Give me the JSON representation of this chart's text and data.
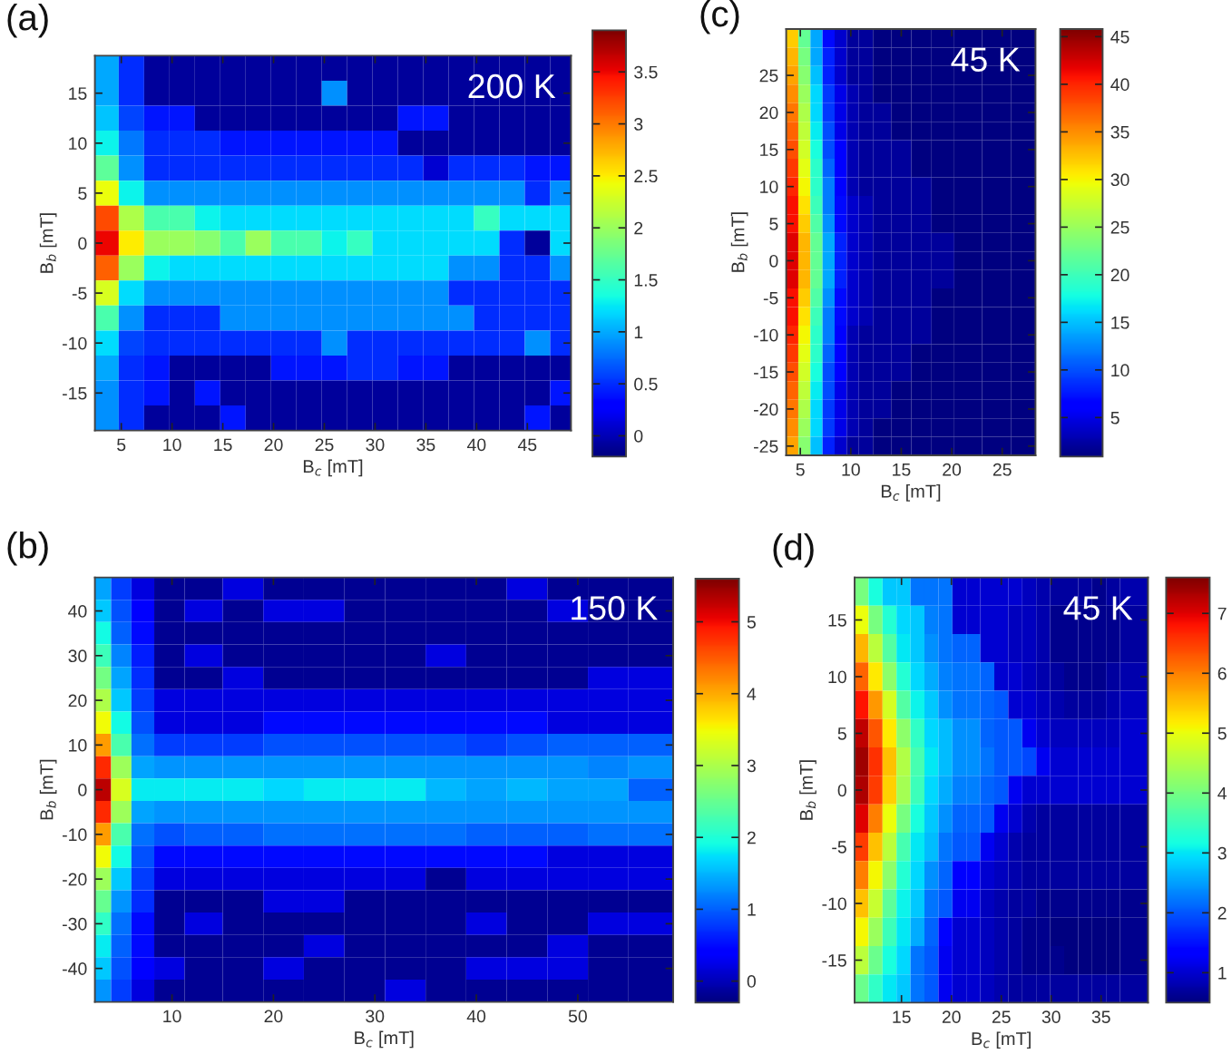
{
  "chart_data": [
    {
      "type": "heatmap",
      "title": "(a)",
      "xlabel": "B$_{c}$ [mT]",
      "ylabel": "B$_{b}$ [mT]",
      "annotations": [
        "200 K"
      ],
      "x": [
        3.5,
        6,
        8.5,
        11,
        13.5,
        16,
        18.5,
        21,
        23.5,
        26,
        28.5,
        31,
        33.5,
        36,
        38.5,
        41,
        43.5,
        46,
        48.5
      ],
      "y_categories": [
        null,
        "15",
        null,
        "10",
        null,
        "5",
        null,
        "0",
        null,
        "-5",
        null,
        "-10",
        null,
        "-15",
        null
      ],
      "cells": [
        [
          1.0,
          0.5,
          -0.1,
          -0.1,
          -0.1,
          -0.1,
          -0.1,
          -0.1,
          -0.1,
          -0.1,
          -0.1,
          -0.1,
          -0.1,
          -0.1,
          -0.1,
          -0.1,
          -0.1,
          -0.1,
          -0.1
        ],
        [
          1.0,
          0.5,
          -0.1,
          -0.1,
          -0.1,
          -0.1,
          -0.1,
          -0.1,
          -0.1,
          0.9,
          -0.1,
          -0.1,
          -0.1,
          -0.1,
          -0.1,
          -0.1,
          -0.1,
          -0.1,
          -0.1
        ],
        [
          1.1,
          0.6,
          0.4,
          0.4,
          -0.1,
          -0.1,
          -0.1,
          -0.1,
          -0.1,
          -0.1,
          -0.1,
          -0.1,
          0.4,
          0.4,
          -0.1,
          -0.1,
          -0.1,
          -0.1,
          -0.1
        ],
        [
          1.3,
          0.8,
          0.5,
          0.5,
          0.5,
          0.4,
          0.4,
          0.4,
          0.4,
          0.4,
          0.4,
          0.4,
          -0.1,
          -0.1,
          -0.1,
          -0.1,
          -0.1,
          -0.1,
          -0.1
        ],
        [
          1.7,
          0.9,
          0.5,
          0.5,
          0.5,
          0.5,
          0.5,
          0.5,
          0.5,
          0.5,
          0.5,
          0.5,
          0.5,
          0.1,
          0.5,
          0.5,
          0.5,
          0.4,
          0.4
        ],
        [
          2.4,
          1.3,
          0.9,
          0.9,
          0.9,
          0.9,
          0.9,
          0.9,
          0.9,
          0.9,
          0.9,
          0.9,
          0.9,
          0.9,
          0.9,
          0.9,
          0.9,
          0.5,
          0.9
        ],
        [
          3.2,
          2.1,
          1.6,
          1.6,
          1.3,
          1.2,
          1.2,
          1.2,
          1.2,
          1.2,
          1.2,
          1.2,
          1.2,
          1.2,
          1.2,
          1.5,
          1.2,
          1.2,
          1.2
        ],
        [
          3.5,
          2.5,
          2.0,
          2.0,
          1.9,
          1.6,
          2.0,
          1.6,
          1.6,
          1.3,
          1.5,
          1.2,
          1.2,
          1.2,
          1.2,
          1.2,
          0.5,
          -0.1,
          1.2
        ],
        [
          3.1,
          2.0,
          1.3,
          1.2,
          1.2,
          1.2,
          1.2,
          1.2,
          1.2,
          1.2,
          1.2,
          1.2,
          1.2,
          1.2,
          0.9,
          0.9,
          0.5,
          0.5,
          0.9
        ],
        [
          2.3,
          1.2,
          0.9,
          0.9,
          0.9,
          0.9,
          0.9,
          0.9,
          0.9,
          0.9,
          0.9,
          0.9,
          0.9,
          0.9,
          0.5,
          0.5,
          0.5,
          0.5,
          0.5
        ],
        [
          1.6,
          0.9,
          0.5,
          0.5,
          0.5,
          0.9,
          0.9,
          0.9,
          0.9,
          0.9,
          0.9,
          0.9,
          0.9,
          0.9,
          0.9,
          0.5,
          0.5,
          0.5,
          0.5
        ],
        [
          1.2,
          0.6,
          0.5,
          0.5,
          0.5,
          0.5,
          0.5,
          0.5,
          0.5,
          0.9,
          0.5,
          0.5,
          0.5,
          0.5,
          0.5,
          0.5,
          0.5,
          0.9,
          0.5
        ],
        [
          1.0,
          0.5,
          0.4,
          -0.1,
          -0.1,
          -0.1,
          -0.1,
          0.4,
          0.4,
          0.4,
          0.5,
          0.5,
          0.4,
          0.4,
          -0.1,
          -0.1,
          -0.1,
          -0.1,
          -0.1
        ],
        [
          0.9,
          0.5,
          0.4,
          -0.1,
          0.4,
          -0.1,
          -0.1,
          -0.1,
          -0.1,
          -0.1,
          -0.1,
          -0.1,
          -0.1,
          -0.1,
          -0.1,
          -0.1,
          -0.1,
          -0.1,
          0.4
        ],
        [
          0.9,
          0.5,
          -0.1,
          -0.1,
          -0.1,
          0.4,
          -0.1,
          -0.1,
          -0.1,
          -0.1,
          -0.1,
          -0.1,
          -0.1,
          -0.1,
          -0.1,
          -0.1,
          -0.1,
          0.4,
          -0.1
        ]
      ],
      "xlim": [
        2.4,
        49.3
      ],
      "xticks": [
        5,
        10,
        15,
        20,
        25,
        30,
        35,
        40,
        45
      ],
      "clim": [
        -0.2,
        3.9
      ],
      "cticks": [
        0,
        0.5,
        1,
        1.5,
        2,
        2.5,
        3,
        3.5
      ]
    },
    {
      "type": "heatmap",
      "title": "(c)",
      "xlabel": "B$_{c}$ [mT]",
      "ylabel": "B$_{b}$ [mT]",
      "annotations": [
        "45 K"
      ],
      "x": [
        4.2,
        5.4,
        6.6,
        7.8,
        9,
        10.2,
        11.4,
        13,
        15,
        17,
        19,
        21.5,
        24.5,
        27.3
      ],
      "y_categories": [
        null,
        null,
        "25",
        null,
        "20",
        null,
        "15",
        null,
        "10",
        null,
        "5",
        null,
        "0",
        null,
        "-5",
        null,
        "-10",
        null,
        "-15",
        null,
        "-20",
        null,
        "-25"
      ],
      "cells": [
        [
          32,
          22,
          14,
          7,
          4,
          2,
          2,
          1,
          1,
          1,
          1,
          1,
          1,
          1
        ],
        [
          33,
          23,
          14,
          8,
          4,
          2,
          2,
          1,
          1,
          1,
          1,
          1,
          1,
          1
        ],
        [
          34,
          24,
          15,
          8,
          4,
          2,
          2,
          1,
          1,
          1,
          1,
          1,
          1,
          1
        ],
        [
          35,
          25,
          16,
          9,
          5,
          3,
          2,
          1,
          1,
          1,
          1,
          1,
          1,
          1
        ],
        [
          36,
          26,
          16,
          9,
          5,
          3,
          2,
          2,
          1,
          1,
          1,
          1,
          1,
          1
        ],
        [
          37,
          27,
          17,
          10,
          5,
          3,
          2,
          2,
          1,
          1,
          1,
          1,
          1,
          1
        ],
        [
          38,
          28,
          18,
          10,
          6,
          3,
          2,
          2,
          2,
          1,
          1,
          1,
          1,
          1
        ],
        [
          39,
          29,
          19,
          11,
          6,
          3,
          2,
          2,
          2,
          1,
          1,
          1,
          1,
          1
        ],
        [
          40,
          30,
          19,
          12,
          6,
          3,
          2,
          2,
          2,
          2,
          1,
          1,
          1,
          1
        ],
        [
          41,
          31,
          20,
          12,
          7,
          4,
          3,
          2,
          2,
          2,
          1,
          1,
          1,
          1
        ],
        [
          41,
          32,
          21,
          13,
          7,
          4,
          3,
          2,
          2,
          2,
          1,
          1,
          1,
          1
        ],
        [
          42,
          33,
          22,
          14,
          8,
          4,
          3,
          2,
          2,
          2,
          2,
          1,
          1,
          1
        ],
        [
          42,
          33,
          22,
          14,
          8,
          4,
          3,
          2,
          2,
          2,
          2,
          1,
          1,
          1
        ],
        [
          42,
          33,
          22,
          14,
          8,
          4,
          3,
          2,
          2,
          2,
          2,
          1,
          1,
          1
        ],
        [
          41,
          32,
          21,
          13,
          7,
          4,
          3,
          2,
          2,
          2,
          1,
          1,
          1,
          1
        ],
        [
          41,
          31,
          20,
          12,
          7,
          4,
          3,
          2,
          2,
          2,
          1,
          1,
          1,
          1
        ],
        [
          40,
          30,
          19,
          12,
          6,
          3,
          2,
          2,
          2,
          2,
          1,
          1,
          1,
          1
        ],
        [
          39,
          29,
          19,
          11,
          6,
          3,
          2,
          2,
          2,
          1,
          1,
          1,
          1,
          1
        ],
        [
          38,
          28,
          18,
          10,
          6,
          3,
          2,
          2,
          2,
          1,
          1,
          1,
          1,
          1
        ],
        [
          37,
          27,
          17,
          10,
          5,
          3,
          2,
          2,
          1,
          1,
          1,
          1,
          1,
          1
        ],
        [
          36,
          26,
          16,
          9,
          5,
          3,
          2,
          2,
          1,
          1,
          1,
          1,
          1,
          1
        ],
        [
          35,
          25,
          16,
          9,
          5,
          3,
          2,
          1,
          1,
          1,
          1,
          1,
          1,
          1
        ],
        [
          34,
          24,
          15,
          8,
          4,
          2,
          2,
          1,
          1,
          1,
          1,
          1,
          1,
          1
        ]
      ],
      "xlim": [
        3.6,
        28.3
      ],
      "xticks": [
        5,
        10,
        15,
        20,
        25
      ],
      "clim": [
        0.9,
        45.8
      ],
      "cticks": [
        5,
        10,
        15,
        20,
        25,
        30,
        35,
        40,
        45
      ]
    },
    {
      "type": "heatmap",
      "title": "(b)",
      "xlabel": "B$_{c}$ [mT]",
      "ylabel": "B$_{b}$ [mT]",
      "annotations": [
        "150 K"
      ],
      "x": [
        3,
        5,
        7,
        9.5,
        13,
        17,
        21,
        25,
        29,
        33,
        37,
        41,
        45,
        49,
        53,
        57
      ],
      "y_categories": [
        null,
        "40",
        null,
        "30",
        null,
        "20",
        null,
        "10",
        null,
        "0",
        null,
        "-10",
        null,
        "-20",
        null,
        "-30",
        null,
        "-40",
        null
      ],
      "cells": [
        [
          1.4,
          0.8,
          0.2,
          -0.2,
          -0.2,
          0.2,
          -0.2,
          -0.2,
          -0.2,
          -0.2,
          -0.2,
          -0.2,
          0.2,
          -0.2,
          -0.2,
          -0.2
        ],
        [
          1.6,
          0.9,
          0.4,
          -0.2,
          0.2,
          -0.2,
          0.2,
          0.2,
          -0.2,
          -0.2,
          -0.2,
          -0.2,
          -0.2,
          0.2,
          -0.2,
          -0.2
        ],
        [
          1.9,
          1.0,
          0.5,
          -0.2,
          -0.2,
          -0.2,
          -0.2,
          -0.2,
          -0.2,
          -0.2,
          -0.2,
          -0.2,
          -0.2,
          -0.2,
          -0.2,
          -0.2
        ],
        [
          2.2,
          1.2,
          0.6,
          -0.2,
          0.2,
          -0.2,
          -0.2,
          -0.2,
          -0.2,
          -0.2,
          0.2,
          -0.2,
          -0.2,
          -0.2,
          -0.2,
          -0.2
        ],
        [
          2.6,
          1.4,
          0.7,
          -0.2,
          -0.2,
          0.2,
          -0.2,
          -0.2,
          -0.2,
          -0.2,
          -0.2,
          -0.2,
          -0.2,
          -0.2,
          0.2,
          0.2
        ],
        [
          3.0,
          1.6,
          0.8,
          0.2,
          0.2,
          0.2,
          0.2,
          0.2,
          0.2,
          0.2,
          0.2,
          0.2,
          0.2,
          0.2,
          0.2,
          0.2
        ],
        [
          3.5,
          1.9,
          0.9,
          0.2,
          0.2,
          0.2,
          0.5,
          0.5,
          0.5,
          0.5,
          0.5,
          0.5,
          0.5,
          0.2,
          0.2,
          0.2
        ],
        [
          4.1,
          2.3,
          1.1,
          0.8,
          0.8,
          0.8,
          0.9,
          0.9,
          0.9,
          0.9,
          0.9,
          0.8,
          0.9,
          1.0,
          1.0,
          1.0
        ],
        [
          4.8,
          2.9,
          1.4,
          1.3,
          1.3,
          1.3,
          1.3,
          1.3,
          1.3,
          1.3,
          1.3,
          1.3,
          1.3,
          1.3,
          1.2,
          1.3
        ],
        [
          5.3,
          3.3,
          1.8,
          1.8,
          1.8,
          1.8,
          1.7,
          1.8,
          1.8,
          1.8,
          1.5,
          1.4,
          1.5,
          1.4,
          1.4,
          1.0
        ],
        [
          4.8,
          2.9,
          1.4,
          1.3,
          1.3,
          1.3,
          1.3,
          1.3,
          1.3,
          1.3,
          1.3,
          1.3,
          1.3,
          1.3,
          1.3,
          1.3
        ],
        [
          4.1,
          2.3,
          1.1,
          0.9,
          1.0,
          1.0,
          1.1,
          1.1,
          1.1,
          1.1,
          1.1,
          1.0,
          1.0,
          1.0,
          1.1,
          1.1
        ],
        [
          3.5,
          1.9,
          0.9,
          0.5,
          0.5,
          0.5,
          0.5,
          0.5,
          0.5,
          0.5,
          0.5,
          0.5,
          0.5,
          0.2,
          0.2,
          0.2
        ],
        [
          2.9,
          1.6,
          0.8,
          0.2,
          0.2,
          0.2,
          0.2,
          0.2,
          0.2,
          0.2,
          -0.2,
          0.2,
          0.2,
          0.2,
          0.2,
          0.2
        ],
        [
          2.5,
          1.3,
          0.7,
          -0.2,
          -0.2,
          -0.2,
          0.2,
          0.2,
          -0.2,
          -0.2,
          -0.2,
          -0.2,
          -0.2,
          -0.2,
          -0.2,
          -0.2
        ],
        [
          2.1,
          1.1,
          0.5,
          -0.2,
          0.2,
          -0.2,
          -0.2,
          -0.2,
          -0.2,
          -0.2,
          -0.2,
          0.2,
          -0.2,
          -0.2,
          0.2,
          0.2
        ],
        [
          1.8,
          1.0,
          0.5,
          -0.2,
          -0.2,
          -0.2,
          -0.2,
          0.2,
          -0.2,
          -0.2,
          -0.2,
          -0.2,
          -0.2,
          0.2,
          -0.2,
          -0.2
        ],
        [
          1.6,
          0.9,
          0.4,
          0.2,
          -0.2,
          -0.2,
          0.2,
          -0.2,
          -0.2,
          -0.2,
          -0.2,
          0.2,
          0.2,
          0.2,
          -0.2,
          -0.2
        ],
        [
          1.3,
          0.8,
          0.2,
          -0.2,
          -0.2,
          -0.2,
          -0.2,
          -0.2,
          -0.2,
          0.2,
          -0.2,
          -0.2,
          -0.2,
          -0.2,
          -0.2,
          -0.2
        ]
      ],
      "xlim": [
        2.4,
        59.4
      ],
      "xticks": [
        10,
        20,
        30,
        40,
        50
      ],
      "clim": [
        -0.3,
        5.6
      ],
      "cticks": [
        0,
        1,
        2,
        3,
        4,
        5
      ]
    },
    {
      "type": "heatmap",
      "title": "(d)",
      "xlabel": "B$_{c}$ [mT]",
      "ylabel": "B$_{b}$ [mT]",
      "annotations": [
        "45 K"
      ],
      "x": [
        11,
        12.4,
        13.8,
        15.2,
        16.6,
        18,
        19.4,
        20.8,
        22.2,
        23.6,
        25,
        26.4,
        27.8,
        29.2,
        30.6,
        32,
        33.4,
        34.8,
        36.2,
        37.6,
        39
      ],
      "y_categories": [
        null,
        "15",
        null,
        "10",
        null,
        "5",
        null,
        "0",
        null,
        "-5",
        null,
        "-10",
        null,
        "-15",
        null
      ],
      "cells": [
        [
          4.0,
          3.2,
          2.8,
          2.8,
          2.2,
          2.2,
          2.2,
          1.0,
          1.0,
          1.0,
          1.0,
          1.0,
          0.9,
          0.8,
          0.7,
          0.7,
          0.7,
          0.6,
          0.7,
          0.8,
          0.8
        ],
        [
          5.0,
          4.0,
          3.3,
          2.9,
          2.8,
          2.3,
          2.2,
          1.0,
          1.0,
          1.0,
          1.0,
          0.9,
          0.9,
          0.8,
          0.6,
          0.6,
          0.6,
          0.6,
          0.6,
          0.7,
          0.7
        ],
        [
          5.6,
          4.6,
          3.7,
          3.0,
          2.8,
          2.4,
          2.2,
          2.1,
          2.1,
          1.0,
          1.0,
          0.9,
          0.9,
          0.8,
          0.6,
          0.6,
          0.6,
          0.6,
          0.6,
          0.7,
          0.7
        ],
        [
          6.2,
          5.2,
          4.2,
          3.3,
          2.9,
          2.6,
          2.3,
          2.2,
          2.2,
          2.1,
          1.0,
          1.0,
          0.9,
          0.8,
          0.7,
          0.6,
          0.6,
          0.6,
          0.7,
          0.8,
          0.8
        ],
        [
          6.8,
          5.8,
          4.8,
          3.7,
          3.1,
          2.8,
          2.4,
          2.2,
          2.2,
          2.1,
          2.0,
          1.0,
          1.0,
          0.9,
          0.8,
          0.7,
          0.7,
          0.7,
          0.8,
          0.9,
          0.9
        ],
        [
          7.2,
          6.3,
          5.2,
          4.2,
          3.4,
          2.9,
          2.7,
          2.4,
          2.4,
          2.1,
          2.0,
          2.0,
          1.2,
          1.0,
          0.9,
          0.9,
          0.9,
          0.9,
          0.9,
          1.0,
          1.0
        ],
        [
          7.4,
          6.6,
          5.5,
          4.5,
          3.6,
          3.0,
          2.7,
          2.4,
          2.4,
          2.2,
          2.0,
          2.0,
          1.9,
          1.2,
          1.0,
          1.0,
          1.0,
          1.0,
          1.0,
          1.0,
          1.0
        ],
        [
          7.3,
          6.5,
          5.4,
          4.4,
          3.5,
          2.9,
          2.6,
          2.3,
          2.3,
          2.1,
          2.0,
          1.2,
          1.0,
          1.0,
          1.0,
          1.0,
          1.0,
          1.0,
          1.0,
          1.0,
          1.0
        ],
        [
          7.0,
          6.0,
          5.0,
          4.0,
          3.2,
          2.8,
          2.4,
          2.1,
          2.1,
          2.0,
          1.2,
          1.0,
          0.8,
          0.7,
          0.7,
          0.7,
          0.7,
          0.7,
          0.7,
          0.7,
          0.7
        ],
        [
          6.5,
          5.5,
          4.6,
          3.6,
          3.0,
          2.7,
          2.2,
          2.0,
          2.0,
          1.2,
          1.0,
          0.8,
          0.7,
          0.7,
          0.7,
          0.7,
          0.7,
          0.7,
          0.7,
          0.7,
          0.7
        ],
        [
          6.0,
          5.1,
          4.2,
          3.3,
          2.9,
          2.4,
          2.1,
          1.3,
          1.3,
          1.0,
          0.9,
          0.8,
          0.7,
          0.7,
          0.7,
          0.7,
          0.7,
          0.7,
          0.7,
          0.7,
          0.7
        ],
        [
          5.5,
          4.7,
          3.8,
          3.1,
          2.8,
          2.2,
          2.0,
          1.2,
          1.2,
          0.9,
          0.8,
          0.7,
          0.7,
          0.6,
          0.6,
          0.6,
          0.6,
          0.6,
          0.6,
          0.6,
          0.6
        ],
        [
          5.1,
          4.3,
          3.5,
          3.0,
          2.6,
          2.1,
          1.3,
          1.0,
          1.0,
          0.9,
          0.8,
          0.7,
          0.6,
          0.6,
          0.5,
          0.5,
          0.5,
          0.5,
          0.5,
          0.6,
          0.6
        ],
        [
          4.6,
          3.9,
          3.2,
          2.9,
          2.2,
          2.0,
          1.2,
          1.0,
          1.0,
          0.9,
          0.8,
          0.7,
          0.6,
          0.6,
          0.6,
          0.5,
          0.5,
          0.5,
          0.5,
          0.6,
          0.6
        ],
        [
          3.9,
          3.4,
          3.0,
          2.8,
          2.2,
          2.0,
          1.2,
          1.0,
          1.0,
          0.9,
          0.8,
          0.7,
          0.7,
          0.7,
          0.7,
          0.7,
          0.7,
          0.7,
          0.7,
          0.7,
          0.7
        ]
      ],
      "xlim": [
        10.3,
        39.7
      ],
      "xticks": [
        15,
        20,
        25,
        30,
        35
      ],
      "clim": [
        0.5,
        7.6
      ],
      "cticks": [
        1,
        2,
        3,
        4,
        5,
        6,
        7
      ]
    }
  ]
}
